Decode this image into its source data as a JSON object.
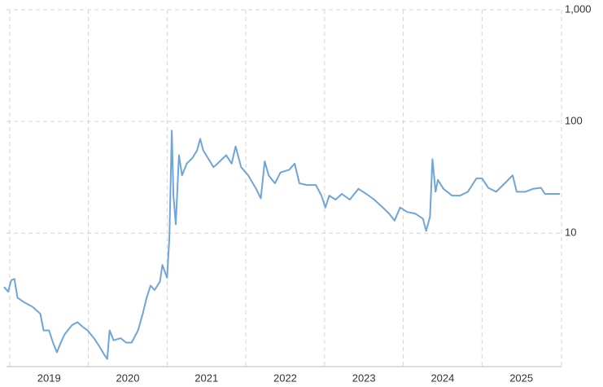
{
  "chart_data": {
    "type": "line",
    "x": [
      2018.93,
      2018.98,
      2019.02,
      2019.06,
      2019.1,
      2019.19,
      2019.29,
      2019.39,
      2019.43,
      2019.5,
      2019.55,
      2019.6,
      2019.65,
      2019.7,
      2019.79,
      2019.86,
      2019.93,
      2019.99,
      2020.07,
      2020.14,
      2020.2,
      2020.24,
      2020.27,
      2020.32,
      2020.41,
      2020.48,
      2020.55,
      2020.63,
      2020.69,
      2020.74,
      2020.79,
      2020.84,
      2020.91,
      2020.94,
      2021.0,
      2021.03,
      2021.06,
      2021.08,
      2021.11,
      2021.15,
      2021.19,
      2021.25,
      2021.32,
      2021.38,
      2021.42,
      2021.46,
      2021.52,
      2021.59,
      2021.67,
      2021.75,
      2021.82,
      2021.87,
      2021.94,
      2022.03,
      2022.13,
      2022.19,
      2022.24,
      2022.29,
      2022.37,
      2022.44,
      2022.55,
      2022.62,
      2022.68,
      2022.78,
      2022.89,
      2022.96,
      2023.01,
      2023.06,
      2023.14,
      2023.22,
      2023.32,
      2023.43,
      2023.53,
      2023.63,
      2023.74,
      2023.82,
      2023.89,
      2023.96,
      2024.05,
      2024.15,
      2024.25,
      2024.29,
      2024.34,
      2024.37,
      2024.41,
      2024.44,
      2024.51,
      2024.62,
      2024.72,
      2024.82,
      2024.93,
      2025.0,
      2025.08,
      2025.18,
      2025.29,
      2025.39,
      2025.44,
      2025.55,
      2025.65,
      2025.75,
      2025.8,
      2025.91,
      2025.99
    ],
    "series": [
      {
        "color": "#6fa5da",
        "values": [
          3.3,
          3.0,
          3.8,
          3.9,
          2.65,
          2.4,
          2.2,
          1.9,
          1.35,
          1.35,
          1.05,
          0.86,
          1.05,
          1.25,
          1.5,
          1.6,
          1.45,
          1.35,
          1.15,
          0.97,
          0.82,
          0.75,
          1.35,
          1.1,
          1.15,
          1.05,
          1.05,
          1.35,
          1.9,
          2.65,
          3.4,
          3.1,
          3.7,
          5.2,
          4.0,
          9.3,
          83,
          22,
          12,
          50,
          33,
          42,
          47,
          55,
          70,
          55,
          47,
          39,
          44,
          50,
          42,
          60,
          39,
          33,
          25,
          20.5,
          44,
          33,
          28,
          35,
          37,
          42,
          28,
          27,
          27,
          21.7,
          17,
          21.7,
          20,
          22.5,
          20,
          25,
          22.5,
          20,
          17,
          15,
          13,
          17,
          15.5,
          15,
          13.5,
          10.5,
          14,
          46,
          23.5,
          30,
          25,
          21.7,
          21.7,
          23.5,
          31,
          31,
          25.5,
          23.5,
          28,
          33,
          23.5,
          23.5,
          25,
          25.5,
          22.5,
          22.5,
          22.5
        ]
      }
    ],
    "xlim": [
      2018.96,
      2026.01
    ],
    "xticks": [
      {
        "value": 2019,
        "label": "2019"
      },
      {
        "value": 2020,
        "label": "2020"
      },
      {
        "value": 2021,
        "label": "2021"
      },
      {
        "value": 2022,
        "label": "2022"
      },
      {
        "value": 2023,
        "label": "2023"
      },
      {
        "value": 2024,
        "label": "2024"
      },
      {
        "value": 2025,
        "label": "2025"
      }
    ],
    "ylim": [
      0.64,
      1000
    ],
    "yticks": [
      10,
      100,
      {
        "value": 1000,
        "label": "1,000"
      }
    ],
    "yscale": "log",
    "grid": true
  }
}
